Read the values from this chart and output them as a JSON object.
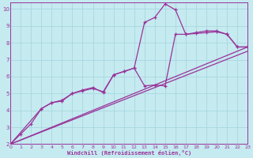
{
  "background_color": "#c5eaf0",
  "grid_color": "#a8d8e0",
  "line_color": "#993399",
  "xlabel": "Windchill (Refroidissement éolien,°C)",
  "xlim": [
    0,
    23
  ],
  "ylim": [
    2,
    10.4
  ],
  "xticks": [
    0,
    1,
    2,
    3,
    4,
    5,
    6,
    7,
    8,
    9,
    10,
    11,
    12,
    13,
    14,
    15,
    16,
    17,
    18,
    19,
    20,
    21,
    22,
    23
  ],
  "yticks": [
    2,
    3,
    4,
    5,
    6,
    7,
    8,
    9,
    10
  ],
  "line1": {
    "x": [
      0,
      1,
      2,
      3,
      4,
      5,
      6,
      7,
      8,
      9,
      10,
      11,
      12,
      13,
      14,
      15,
      16,
      17,
      18,
      19,
      20,
      21,
      22,
      23
    ],
    "y": [
      2.0,
      2.6,
      3.2,
      4.1,
      4.45,
      4.6,
      5.0,
      5.2,
      5.35,
      5.05,
      6.1,
      6.3,
      6.5,
      9.2,
      9.5,
      10.3,
      9.95,
      8.5,
      8.6,
      8.7,
      8.7,
      8.5,
      7.75,
      7.75
    ]
  },
  "line2": {
    "x": [
      0,
      3,
      4,
      5,
      6,
      7,
      8,
      9,
      10,
      11,
      12,
      13,
      14,
      15,
      16,
      17,
      18,
      19,
      20,
      21,
      22,
      23
    ],
    "y": [
      2.0,
      4.1,
      4.45,
      4.55,
      5.0,
      5.15,
      5.3,
      5.1,
      6.1,
      6.3,
      6.5,
      5.45,
      5.5,
      5.45,
      8.5,
      8.5,
      8.55,
      8.6,
      8.65,
      8.5,
      7.75,
      7.75
    ]
  },
  "line3": {
    "x": [
      0,
      23
    ],
    "y": [
      2.0,
      7.5
    ]
  },
  "line4": {
    "x": [
      0,
      23
    ],
    "y": [
      2.0,
      7.75
    ]
  }
}
